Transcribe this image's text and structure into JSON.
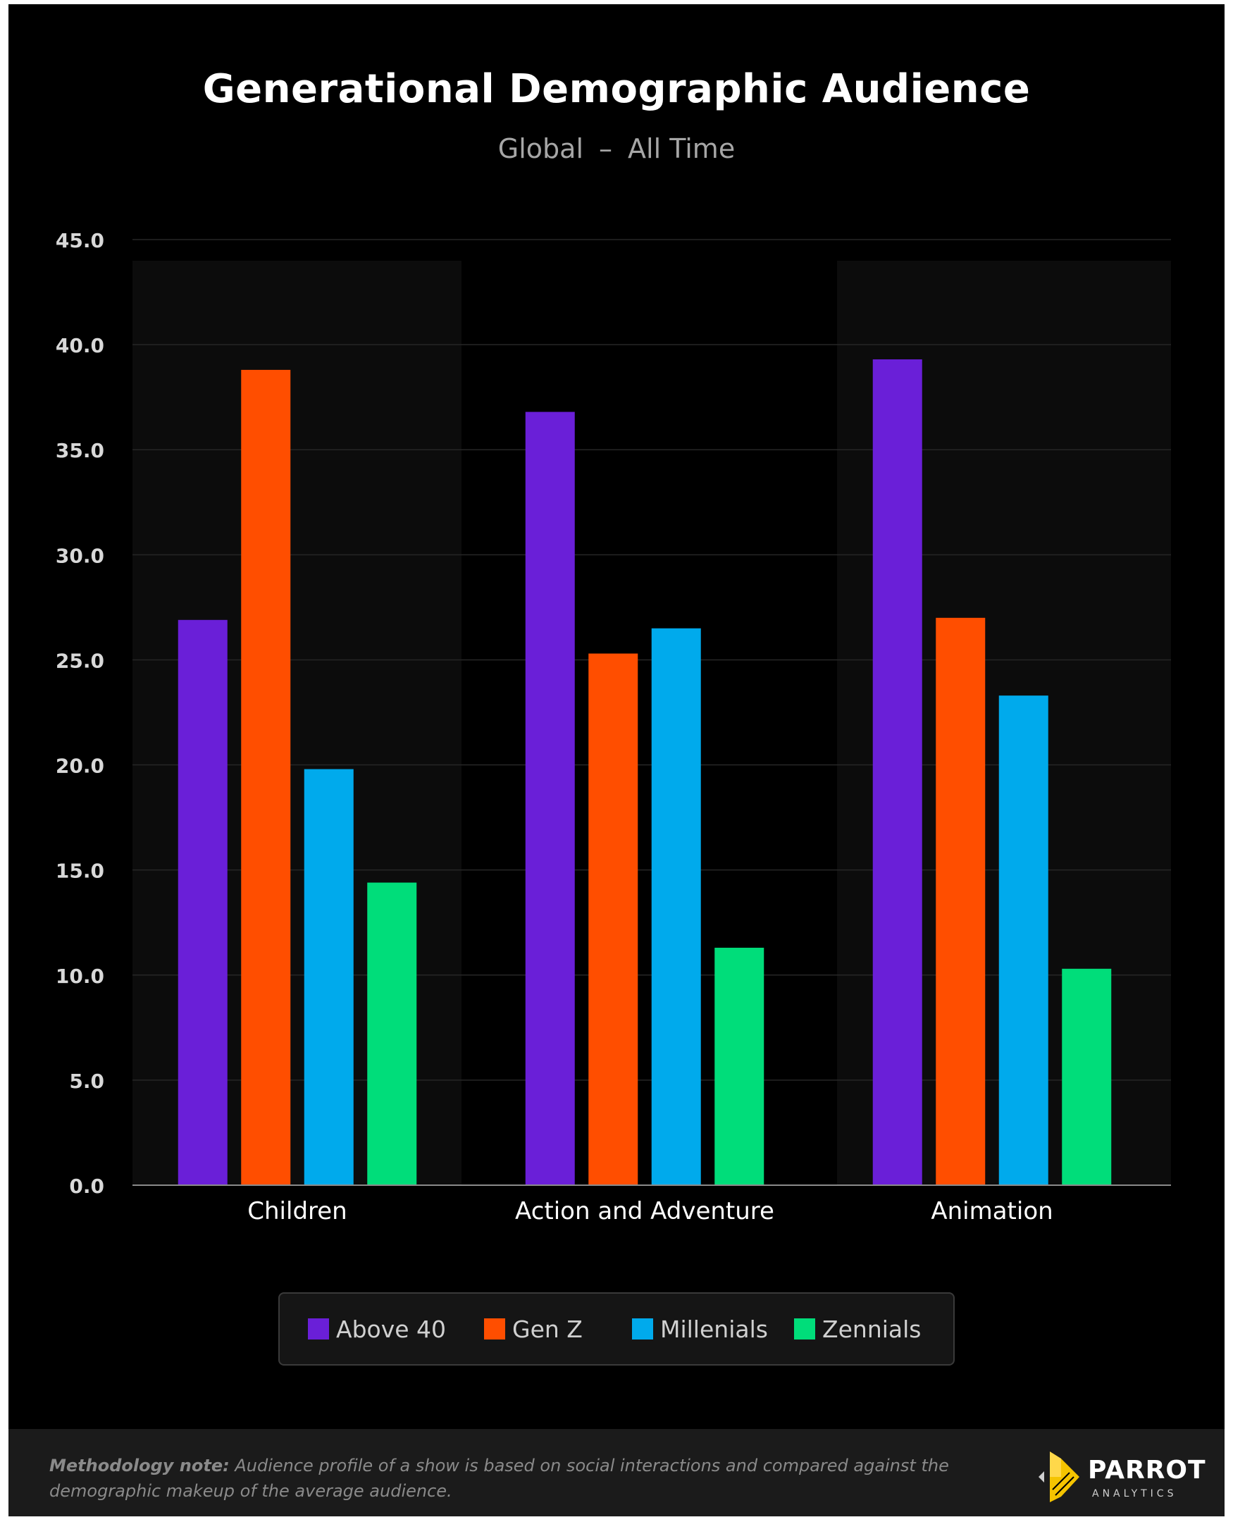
{
  "chart_data": {
    "type": "bar",
    "title": "Generational Demographic Audience",
    "subtitle": {
      "region": "Global",
      "separator": "–",
      "period": "All Time"
    },
    "categories": [
      "Children",
      "Action and Adventure",
      "Animation"
    ],
    "series": [
      {
        "name": "Above 40",
        "color": "#6a1fd8",
        "values": [
          26.9,
          36.8,
          39.3
        ]
      },
      {
        "name": "Gen Z",
        "color": "#ff4e00",
        "values": [
          38.8,
          25.3,
          27.0
        ]
      },
      {
        "name": "Millenials",
        "color": "#00aaec",
        "values": [
          19.8,
          26.5,
          23.3
        ]
      },
      {
        "name": "Zennials",
        "color": "#00dd7a",
        "values": [
          14.4,
          11.3,
          10.3
        ]
      }
    ],
    "ylim": [
      0,
      45
    ],
    "yticks": [
      "0.0",
      "5.0",
      "10.0",
      "15.0",
      "20.0",
      "25.0",
      "30.0",
      "35.0",
      "40.0",
      "45.0"
    ],
    "xlabel": "",
    "ylabel": "",
    "grid": true,
    "legend_position": "bottom-center"
  },
  "footer": {
    "note_label": "Methodology note:",
    "note_text": " Audience profile of a show is based on social interactions and compared against the demographic makeup of the average audience.",
    "brand_name": "PARROT",
    "brand_sub": "ANALYTICS"
  }
}
